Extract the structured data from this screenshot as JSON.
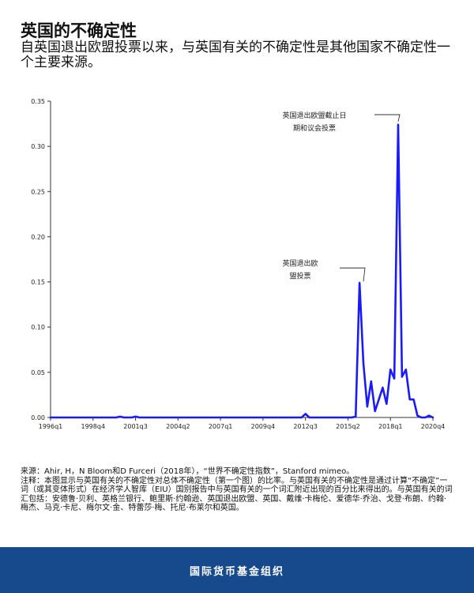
{
  "title": "英国的不确定性",
  "subtitle": "自英国退出欧盟投票以来，与英国有关的不确定性是其他国家不确定性一个主要来源。",
  "chart_data": {
    "type": "line",
    "title": "英国的不确定性",
    "xlabel": "",
    "ylabel": "",
    "ylim": [
      0,
      0.35
    ],
    "yticks": [
      0,
      0.05,
      0.1,
      0.15,
      0.2,
      0.25,
      0.3,
      0.35
    ],
    "ytick_labels": [
      "0.00",
      "0.05",
      "0.10",
      "0.15",
      "0.20",
      "0.25",
      "0.30",
      "0.35"
    ],
    "xtick_labels": [
      "1996q1",
      "1998q4",
      "2001q3",
      "2004q2",
      "2007q1",
      "2009q4",
      "2012q3",
      "2015q2",
      "2018q1",
      "2020q4"
    ],
    "grid": false,
    "series_color": "#1a1aff",
    "series": [
      {
        "name": "",
        "x": [
          "1996q1",
          "1996q2",
          "1996q3",
          "1996q4",
          "1997q1",
          "1997q2",
          "1997q3",
          "1997q4",
          "1998q1",
          "1998q2",
          "1998q3",
          "1998q4",
          "1999q1",
          "1999q2",
          "1999q3",
          "1999q4",
          "2000q1",
          "2000q2",
          "2000q3",
          "2000q4",
          "2001q1",
          "2001q2",
          "2001q3",
          "2001q4",
          "2002q1",
          "2002q2",
          "2002q3",
          "2002q4",
          "2003q1",
          "2003q2",
          "2003q3",
          "2003q4",
          "2004q1",
          "2004q2",
          "2004q3",
          "2004q4",
          "2005q1",
          "2005q2",
          "2005q3",
          "2005q4",
          "2006q1",
          "2006q2",
          "2006q3",
          "2006q4",
          "2007q1",
          "2007q2",
          "2007q3",
          "2007q4",
          "2008q1",
          "2008q2",
          "2008q3",
          "2008q4",
          "2009q1",
          "2009q2",
          "2009q3",
          "2009q4",
          "2010q1",
          "2010q2",
          "2010q3",
          "2010q4",
          "2011q1",
          "2011q2",
          "2011q3",
          "2011q4",
          "2012q1",
          "2012q2",
          "2012q3",
          "2012q4",
          "2013q1",
          "2013q2",
          "2013q3",
          "2013q4",
          "2014q1",
          "2014q2",
          "2014q3",
          "2014q4",
          "2015q1",
          "2015q2",
          "2015q3",
          "2015q4",
          "2016q1",
          "2016q2",
          "2016q3",
          "2016q4",
          "2017q1",
          "2017q2",
          "2017q3",
          "2017q4",
          "2018q1",
          "2018q2",
          "2018q3",
          "2018q4",
          "2019q1",
          "2019q2",
          "2019q3",
          "2019q4",
          "2020q1",
          "2020q2",
          "2020q3",
          "2020q4"
        ],
        "y": [
          0,
          0,
          0,
          0,
          0,
          0,
          0,
          0,
          0,
          0,
          0,
          0,
          0,
          0,
          0,
          0,
          0,
          0,
          0.001,
          0,
          0,
          0,
          0.001,
          0,
          0,
          0,
          0,
          0,
          0,
          0,
          0,
          0,
          0,
          0,
          0,
          0,
          0,
          0,
          0,
          0,
          0,
          0,
          0,
          0,
          0,
          0,
          0,
          0,
          0,
          0,
          0,
          0,
          0,
          0,
          0,
          0,
          0,
          0,
          0,
          0,
          0,
          0,
          0,
          0,
          0,
          0,
          0.004,
          0,
          0,
          0,
          0,
          0,
          0,
          0,
          0,
          0,
          0,
          0,
          0,
          0.001,
          0.149,
          0.06,
          0.012,
          0.04,
          0.007,
          0.02,
          0.033,
          0.015,
          0.053,
          0.043,
          0.324,
          0.045,
          0.053,
          0.02,
          0.02,
          0.002,
          0,
          0,
          0.002,
          0
        ]
      }
    ],
    "annotations": [
      {
        "lines": [
          "英国退出欧盟截止日",
          "期和议会投票"
        ],
        "target": "2018q3"
      },
      {
        "lines": [
          "英国退出欧",
          "盟投票"
        ],
        "target": "2016q2"
      }
    ]
  },
  "notes": {
    "source": "来源：Ahir, H，N Bloom和D Furceri（2018年），“世界不确定性指数”，Stanford mimeo。",
    "note": "注释：本图显示与英国有关的不确定性对总体不确定性（第一个图）的比率。与英国有关的不确定性是通过计算“不确定”一词（或其变体形式）在经济学人智库（EIU）国别报告中与英国有关的一个词汇附近出现的百分比来得出的。与英国有关的词汇包括：安德鲁·贝利、英格兰银行、鲍里斯·约翰逊、英国退出欧盟、英国、戴维·卡梅伦、爱德华·乔治、戈登·布朗、约翰·梅杰、马克·卡尼、梅尔文·金、特蕾莎·梅、托尼·布莱尔和英国。"
  },
  "footer": {
    "label": "国际货币基金组织"
  }
}
